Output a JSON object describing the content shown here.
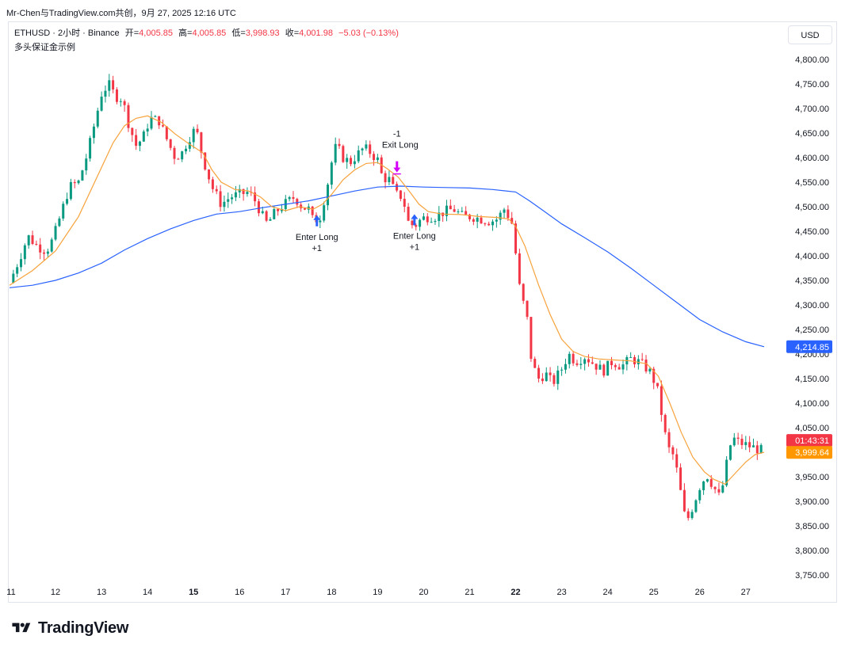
{
  "header": {
    "caption": "Mr-Chen与TradingView.com共创，9月 27, 2025 12:16 UTC"
  },
  "legend": {
    "symbol": "ETHUSD · 2小时 · Binance",
    "open_label": "开=",
    "open": "4,005.85",
    "high_label": "高=",
    "high": "4,005.85",
    "low_label": "低=",
    "low": "3,998.93",
    "close_label": "收=",
    "close": "4,001.98",
    "change": "−5.03 (−0.13%)",
    "strategy_name": "多头保证金示例"
  },
  "toolbar": {
    "currency_button": "USD"
  },
  "brand": {
    "name": "TradingView"
  },
  "colors": {
    "up": "#089981",
    "down": "#f23645",
    "ma_fast": "#f7a23b",
    "ma_slow": "#2962ff",
    "signal_entry": "#2962ff",
    "signal_exit": "#d500f9",
    "price_badge": "#f23645",
    "ma_badge": "#ff9800",
    "ma_slow_badge": "#2962ff"
  },
  "chart_data": {
    "type": "candlestick",
    "x_axis": {
      "ticks": [
        "11",
        "12",
        "13",
        "14",
        "15",
        "16",
        "17",
        "18",
        "19",
        "20",
        "21",
        "22",
        "23",
        "24",
        "25",
        "26",
        "27"
      ],
      "bold_ticks": [
        "15",
        "22"
      ],
      "range": [
        "11",
        "27"
      ]
    },
    "y_axis": {
      "ticks": [
        "4,800.00",
        "4,750.00",
        "4,700.00",
        "4,650.00",
        "4,600.00",
        "4,550.00",
        "4,500.00",
        "4,450.00",
        "4,400.00",
        "4,350.00",
        "4,300.00",
        "4,250.00",
        "4,200.00",
        "4,150.00",
        "4,100.00",
        "4,050.00",
        "4,000.00",
        "3,950.00",
        "3,900.00",
        "3,850.00",
        "3,800.00",
        "3,750.00"
      ],
      "range": [
        3725,
        4830
      ]
    },
    "close_path": [
      [
        11.0,
        4345
      ],
      [
        11.2,
        4390
      ],
      [
        11.4,
        4440
      ],
      [
        11.6,
        4420
      ],
      [
        11.8,
        4410
      ],
      [
        11.95,
        4435
      ],
      [
        12.1,
        4480
      ],
      [
        12.3,
        4540
      ],
      [
        12.5,
        4550
      ],
      [
        12.7,
        4610
      ],
      [
        12.85,
        4670
      ],
      [
        13.0,
        4730
      ],
      [
        13.15,
        4750
      ],
      [
        13.3,
        4725
      ],
      [
        13.45,
        4720
      ],
      [
        13.6,
        4665
      ],
      [
        13.75,
        4625
      ],
      [
        13.9,
        4640
      ],
      [
        14.05,
        4680
      ],
      [
        14.25,
        4675
      ],
      [
        14.45,
        4630
      ],
      [
        14.6,
        4600
      ],
      [
        14.75,
        4610
      ],
      [
        14.9,
        4640
      ],
      [
        15.05,
        4660
      ],
      [
        15.2,
        4600
      ],
      [
        15.4,
        4540
      ],
      [
        15.6,
        4505
      ],
      [
        15.8,
        4520
      ],
      [
        16.0,
        4525
      ],
      [
        16.2,
        4530
      ],
      [
        16.35,
        4510
      ],
      [
        16.5,
        4480
      ],
      [
        16.6,
        4465
      ],
      [
        16.75,
        4485
      ],
      [
        16.9,
        4500
      ],
      [
        17.05,
        4510
      ],
      [
        17.2,
        4520
      ],
      [
        17.35,
        4500
      ],
      [
        17.5,
        4495
      ],
      [
        17.6,
        4470
      ],
      [
        17.75,
        4480
      ],
      [
        17.9,
        4540
      ],
      [
        18.0,
        4590
      ],
      [
        18.1,
        4625
      ],
      [
        18.25,
        4600
      ],
      [
        18.4,
        4590
      ],
      [
        18.55,
        4605
      ],
      [
        18.7,
        4620
      ],
      [
        18.85,
        4610
      ],
      [
        19.0,
        4595
      ],
      [
        19.1,
        4560
      ],
      [
        19.25,
        4555
      ],
      [
        19.4,
        4525
      ],
      [
        19.55,
        4520
      ],
      [
        19.65,
        4470
      ],
      [
        19.8,
        4460
      ],
      [
        19.95,
        4475
      ],
      [
        20.1,
        4480
      ],
      [
        20.25,
        4480
      ],
      [
        20.45,
        4490
      ],
      [
        20.65,
        4495
      ],
      [
        20.85,
        4480
      ],
      [
        21.05,
        4480
      ],
      [
        21.25,
        4475
      ],
      [
        21.45,
        4470
      ],
      [
        21.6,
        4475
      ],
      [
        21.75,
        4495
      ],
      [
        21.85,
        4480
      ],
      [
        21.95,
        4460
      ],
      [
        22.05,
        4350
      ],
      [
        22.15,
        4310
      ],
      [
        22.25,
        4270
      ],
      [
        22.35,
        4180
      ],
      [
        22.5,
        4150
      ],
      [
        22.65,
        4160
      ],
      [
        22.8,
        4140
      ],
      [
        23.0,
        4170
      ],
      [
        23.15,
        4200
      ],
      [
        23.3,
        4185
      ],
      [
        23.5,
        4195
      ],
      [
        23.7,
        4180
      ],
      [
        23.9,
        4165
      ],
      [
        24.1,
        4185
      ],
      [
        24.3,
        4175
      ],
      [
        24.5,
        4190
      ],
      [
        24.65,
        4185
      ],
      [
        24.8,
        4175
      ],
      [
        24.95,
        4160
      ],
      [
        25.1,
        4120
      ],
      [
        25.2,
        4060
      ],
      [
        25.3,
        4010
      ],
      [
        25.45,
        3990
      ],
      [
        25.6,
        3910
      ],
      [
        25.7,
        3855
      ],
      [
        25.85,
        3890
      ],
      [
        26.0,
        3930
      ],
      [
        26.15,
        3955
      ],
      [
        26.3,
        3930
      ],
      [
        26.45,
        3905
      ],
      [
        26.55,
        3960
      ],
      [
        26.7,
        4030
      ],
      [
        26.85,
        4020
      ],
      [
        27.0,
        4015
      ],
      [
        27.15,
        4010
      ],
      [
        27.3,
        4005
      ],
      [
        27.4,
        4002
      ]
    ],
    "ma_fast": [
      [
        11.0,
        4340
      ],
      [
        11.5,
        4370
      ],
      [
        12.0,
        4410
      ],
      [
        12.5,
        4480
      ],
      [
        13.0,
        4580
      ],
      [
        13.25,
        4630
      ],
      [
        13.5,
        4665
      ],
      [
        13.75,
        4680
      ],
      [
        14.0,
        4685
      ],
      [
        14.3,
        4672
      ],
      [
        14.6,
        4648
      ],
      [
        14.9,
        4628
      ],
      [
        15.2,
        4610
      ],
      [
        15.4,
        4575
      ],
      [
        15.6,
        4550
      ],
      [
        15.9,
        4535
      ],
      [
        16.2,
        4532
      ],
      [
        16.45,
        4520
      ],
      [
        16.7,
        4500
      ],
      [
        17.0,
        4492
      ],
      [
        17.3,
        4500
      ],
      [
        17.6,
        4495
      ],
      [
        17.8,
        4505
      ],
      [
        18.0,
        4525
      ],
      [
        18.25,
        4555
      ],
      [
        18.5,
        4575
      ],
      [
        18.75,
        4588
      ],
      [
        19.0,
        4590
      ],
      [
        19.2,
        4578
      ],
      [
        19.45,
        4560
      ],
      [
        19.7,
        4530
      ],
      [
        19.9,
        4505
      ],
      [
        20.1,
        4490
      ],
      [
        20.4,
        4485
      ],
      [
        20.8,
        4484
      ],
      [
        21.2,
        4480
      ],
      [
        21.6,
        4478
      ],
      [
        21.85,
        4475
      ],
      [
        22.0,
        4460
      ],
      [
        22.2,
        4420
      ],
      [
        22.5,
        4340
      ],
      [
        22.75,
        4280
      ],
      [
        23.0,
        4230
      ],
      [
        23.25,
        4205
      ],
      [
        23.5,
        4195
      ],
      [
        23.8,
        4190
      ],
      [
        24.1,
        4188
      ],
      [
        24.5,
        4186
      ],
      [
        24.85,
        4180
      ],
      [
        25.1,
        4155
      ],
      [
        25.35,
        4100
      ],
      [
        25.6,
        4040
      ],
      [
        25.85,
        3990
      ],
      [
        26.1,
        3960
      ],
      [
        26.3,
        3945
      ],
      [
        26.55,
        3935
      ],
      [
        26.75,
        3955
      ],
      [
        27.0,
        3980
      ],
      [
        27.2,
        3995
      ],
      [
        27.4,
        4000
      ]
    ],
    "ma_slow": [
      [
        11.0,
        4335
      ],
      [
        11.5,
        4340
      ],
      [
        12.0,
        4350
      ],
      [
        12.5,
        4365
      ],
      [
        13.0,
        4385
      ],
      [
        13.5,
        4412
      ],
      [
        14.0,
        4435
      ],
      [
        14.5,
        4455
      ],
      [
        15.0,
        4472
      ],
      [
        15.5,
        4485
      ],
      [
        16.0,
        4490
      ],
      [
        16.5,
        4498
      ],
      [
        17.0,
        4505
      ],
      [
        17.5,
        4512
      ],
      [
        18.0,
        4522
      ],
      [
        18.5,
        4532
      ],
      [
        19.0,
        4540
      ],
      [
        19.5,
        4542
      ],
      [
        20.0,
        4540
      ],
      [
        20.5,
        4539
      ],
      [
        21.0,
        4538
      ],
      [
        21.5,
        4535
      ],
      [
        22.0,
        4530
      ],
      [
        22.3,
        4512
      ],
      [
        22.6,
        4492
      ],
      [
        23.0,
        4465
      ],
      [
        23.5,
        4437
      ],
      [
        24.0,
        4408
      ],
      [
        24.5,
        4375
      ],
      [
        25.0,
        4340
      ],
      [
        25.5,
        4305
      ],
      [
        26.0,
        4270
      ],
      [
        26.5,
        4245
      ],
      [
        27.0,
        4225
      ],
      [
        27.4,
        4214.85
      ]
    ],
    "signals": [
      {
        "x": 17.68,
        "price": 4460,
        "label": "Enter Long",
        "qty": "+1",
        "kind": "entry"
      },
      {
        "x": 19.42,
        "price": 4570,
        "label": "Exit Long",
        "qty": "-1",
        "kind": "exit"
      },
      {
        "x": 19.8,
        "price": 4462,
        "label": "Enter Long",
        "qty": "+1",
        "kind": "entry"
      }
    ],
    "price_badges": [
      {
        "price": 4214.85,
        "label": "4,214.85",
        "kind": "ma_slow"
      },
      {
        "price": 4024,
        "label": "01:43:31",
        "kind": "price"
      },
      {
        "price": 3999.64,
        "label": "3,999.64",
        "kind": "ma_fast"
      }
    ]
  }
}
